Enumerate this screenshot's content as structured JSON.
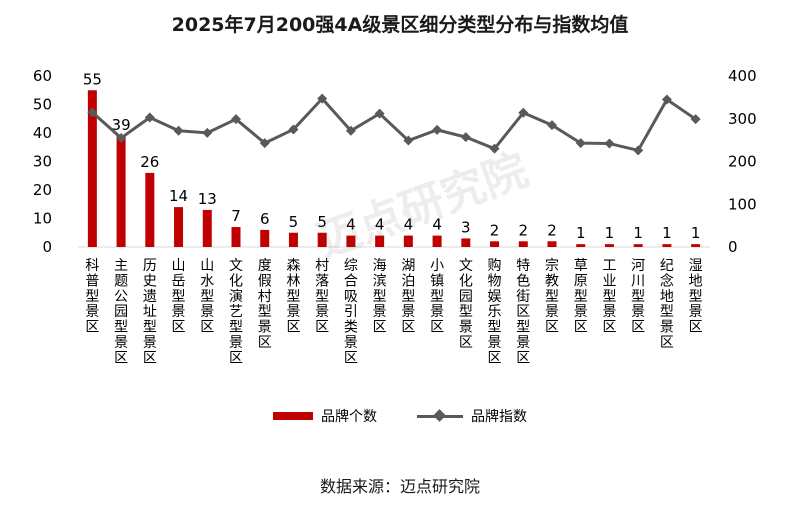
{
  "watermark_text": "迈点研究院",
  "chart_data": {
    "type": "bar",
    "title": "2025年7月200强4A级景区细分类型分布与指数均值",
    "categories": [
      "科普型景区",
      "主题公园型景区",
      "历史遗址型景区",
      "山岳型景区",
      "山水型景区",
      "文化演艺型景区",
      "度假村型景区",
      "森林型景区",
      "村落型景区",
      "综合吸引类景区",
      "海滨型景区",
      "湖泊型景区",
      "小镇型景区",
      "文化园型景区",
      "购物娱乐型景区",
      "特色街区型景区",
      "宗教型景区",
      "草原型景区",
      "工业型景区",
      "河川型景区",
      "纪念地型景区",
      "湿地型景区"
    ],
    "series": [
      {
        "name": "品牌个数",
        "type": "bar",
        "axis": "left",
        "color": "#c00000",
        "values": [
          55,
          39,
          26,
          14,
          13,
          7,
          6,
          5,
          5,
          4,
          4,
          4,
          4,
          3,
          2,
          2,
          2,
          1,
          1,
          1,
          1,
          1
        ]
      },
      {
        "name": "品牌指数",
        "type": "line",
        "axis": "right",
        "color": "#595959",
        "values": [
          315,
          255,
          303,
          272,
          267,
          299,
          243,
          275,
          347,
          272,
          312,
          249,
          274,
          257,
          230,
          314,
          285,
          243,
          242,
          226,
          345,
          299
        ]
      }
    ],
    "y_left": {
      "ticks": [
        0,
        10,
        20,
        30,
        40,
        50,
        60
      ],
      "lim": [
        0,
        60
      ]
    },
    "y_right": {
      "ticks": [
        0,
        100,
        200,
        300,
        400
      ],
      "lim": [
        0,
        400
      ]
    },
    "legend_position": "bottom",
    "grid": false
  },
  "source": "数据来源：迈点研究院"
}
